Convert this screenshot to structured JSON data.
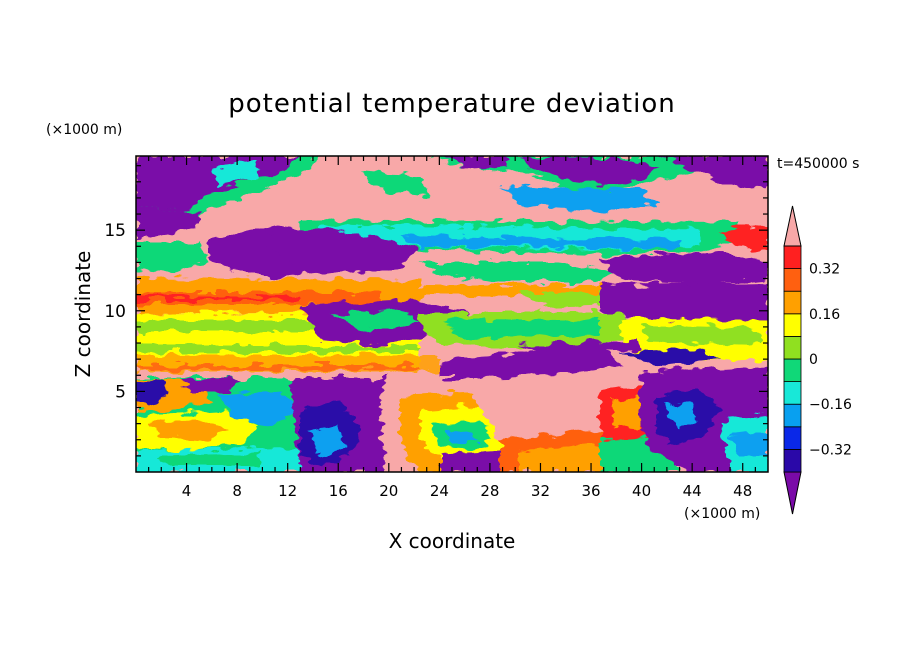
{
  "chart_data": {
    "type": "heatmap",
    "title": "potential temperature deviation",
    "xlabel": "X coordinate",
    "ylabel": "Z coordinate",
    "x_unit": "(×1000 m)",
    "z_unit": "(×1000 m)",
    "time_label": "t=450000 s",
    "xlim": [
      0,
      50
    ],
    "ylim": [
      0,
      19.6
    ],
    "x_ticks": [
      4,
      8,
      12,
      16,
      20,
      24,
      28,
      32,
      36,
      40,
      44,
      48
    ],
    "y_ticks": [
      5,
      10,
      15
    ],
    "colorbar": {
      "levels": [
        -0.4,
        -0.32,
        -0.24,
        -0.16,
        -0.08,
        0,
        0.08,
        0.16,
        0.24,
        0.32,
        0.4
      ],
      "tick_labels": [
        "0.32",
        "0.16",
        "0",
        "−0.16",
        "−0.32"
      ],
      "tick_values": [
        0.32,
        0.16,
        0,
        -0.16,
        -0.32
      ],
      "extend": "both",
      "colors": [
        "#7a0aa8",
        "#2a08a8",
        "#0a28e8",
        "#08a0f0",
        "#18e8d8",
        "#10d878",
        "#90e020",
        "#ffff00",
        "#ffa000",
        "#ff6010",
        "#ff2020",
        "#f8a8a8"
      ]
    }
  }
}
